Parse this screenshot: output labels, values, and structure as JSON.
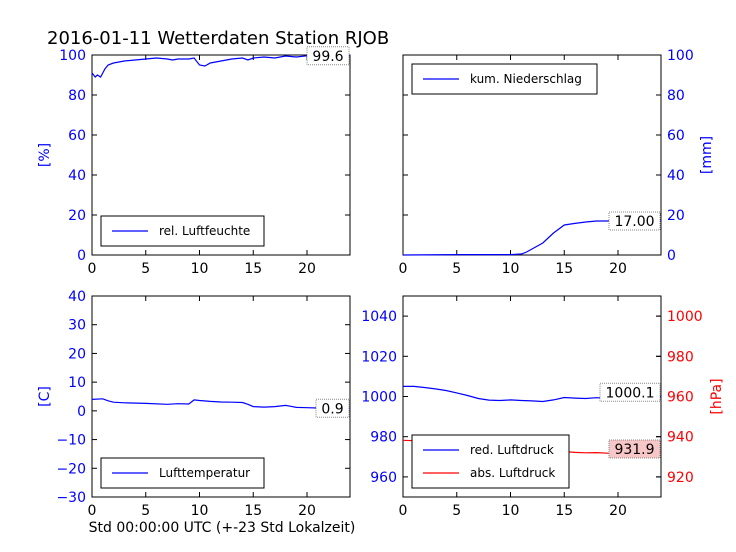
{
  "title": "2016-01-11 Wetterdaten Station RJOB",
  "xlabel": "Std 00:00:00 UTC (+-23 Std Lokalzeit)",
  "colors": {
    "blue": "#0000ff",
    "red": "#ff0000",
    "label_bg": "#f7c6c6"
  },
  "chart_data": [
    {
      "type": "line",
      "panel": "top-left",
      "ylabel": "[%]",
      "xlim": [
        0,
        24
      ],
      "ylim": [
        0,
        100
      ],
      "xticks": [
        0,
        5,
        10,
        15,
        20
      ],
      "yticks": [
        0,
        20,
        40,
        60,
        80,
        100
      ],
      "legend_loc": "lower-left",
      "value_label": "99.6",
      "series": [
        {
          "name": "rel. Luftfeuchte",
          "color": "#0000ff",
          "x": [
            0,
            0.3,
            0.5,
            0.8,
            1.0,
            1.2,
            1.5,
            2,
            3,
            4,
            5,
            6,
            7,
            7.5,
            8,
            9,
            9.5,
            10,
            10.5,
            11,
            12,
            13,
            14,
            14.5,
            15,
            16,
            17,
            18,
            19,
            20,
            21,
            22,
            23,
            24
          ],
          "y": [
            91,
            89,
            90,
            89,
            91,
            93,
            95,
            96,
            97,
            97.5,
            98,
            98.5,
            98,
            97.5,
            98,
            98,
            98.5,
            95,
            94.5,
            96,
            97,
            98,
            98.5,
            97.5,
            98.5,
            99,
            98.5,
            99.5,
            99,
            99.6,
            99.3,
            99.6,
            99.6,
            99.6
          ]
        }
      ]
    },
    {
      "type": "line",
      "panel": "top-right",
      "ylabel": "[mm]",
      "yaxis_side": "right",
      "xlim": [
        0,
        24
      ],
      "ylim": [
        0,
        100
      ],
      "xticks": [
        0,
        5,
        10,
        15,
        20
      ],
      "yticks": [
        0,
        20,
        40,
        60,
        80,
        100
      ],
      "legend_loc": "upper-left",
      "value_label": "17.00",
      "series": [
        {
          "name": "kum. Niederschlag",
          "color": "#0000ff",
          "x": [
            0,
            5,
            10,
            11,
            11.5,
            12,
            13,
            14,
            15,
            16,
            17,
            18,
            20,
            22,
            24
          ],
          "y": [
            0,
            0.2,
            0.2,
            0.5,
            1.5,
            3,
            6,
            11,
            15,
            15.8,
            16.5,
            17,
            17,
            17,
            17
          ]
        }
      ]
    },
    {
      "type": "line",
      "panel": "bottom-left",
      "ylabel": "[C]",
      "xlim": [
        0,
        24
      ],
      "ylim": [
        -30,
        40
      ],
      "xticks": [
        0,
        5,
        10,
        15,
        20
      ],
      "yticks": [
        -30,
        -20,
        -10,
        0,
        10,
        20,
        30,
        40
      ],
      "legend_loc": "lower-left",
      "value_label": "0.9",
      "series": [
        {
          "name": "Lufttemperatur",
          "color": "#0000ff",
          "x": [
            0,
            1,
            1.5,
            2,
            3,
            5,
            7,
            8,
            9,
            9.5,
            10,
            11,
            12,
            13,
            14,
            14.5,
            15,
            16,
            17,
            18,
            18.5,
            19,
            20,
            21,
            22,
            23,
            24
          ],
          "y": [
            4,
            4.2,
            3.5,
            3,
            2.8,
            2.6,
            2.3,
            2.5,
            2.4,
            3.8,
            3.6,
            3.3,
            3.1,
            3.0,
            2.9,
            2.3,
            1.5,
            1.3,
            1.5,
            1.9,
            1.6,
            1.2,
            1.1,
            1.0,
            0.9,
            0.9,
            0.9
          ]
        }
      ]
    },
    {
      "type": "line",
      "panel": "bottom-right",
      "xlim": [
        0,
        24
      ],
      "ylim": [
        950,
        1050
      ],
      "ylim_right": [
        910,
        1010
      ],
      "ylabel_right": "[hPa]",
      "xticks": [
        0,
        5,
        10,
        15,
        20
      ],
      "yticks": [
        960,
        980,
        1000,
        1020,
        1040
      ],
      "yticks_right": [
        920,
        940,
        960,
        980,
        1000
      ],
      "legend_loc": "lower-left",
      "value_labels": [
        "1000.1",
        "931.9"
      ],
      "series": [
        {
          "name": "red. Luftdruck",
          "color": "#0000ff",
          "axis": "left",
          "x": [
            0,
            1,
            2,
            3,
            4,
            5,
            6,
            7,
            8,
            9,
            10,
            11,
            12,
            13,
            14,
            15,
            16,
            17,
            18,
            19,
            20,
            21,
            22,
            23,
            24
          ],
          "y": [
            1005,
            1005,
            1004.5,
            1003.8,
            1003,
            1001.8,
            1000.5,
            999,
            998.2,
            998,
            998.3,
            998,
            997.8,
            997.5,
            998.3,
            999.5,
            999.2,
            999,
            999.4,
            999,
            998.5,
            999.5,
            999.8,
            1000,
            1000.1
          ]
        },
        {
          "name": "abs. Luftdruck",
          "color": "#ff0000",
          "axis": "right",
          "x": [
            0,
            1,
            2,
            3,
            4,
            5,
            6,
            7,
            8,
            9,
            10,
            11,
            12,
            13,
            14,
            15,
            16,
            17,
            18,
            19,
            20,
            21,
            22,
            23,
            24
          ],
          "y": [
            938.2,
            938,
            937.2,
            936.6,
            935.8,
            934.7,
            933.8,
            933.2,
            932.5,
            932.2,
            932.6,
            932.1,
            931.9,
            932,
            932.2,
            932.6,
            932.2,
            932,
            932.1,
            931.8,
            931.2,
            931.7,
            932.3,
            932,
            931.9
          ]
        }
      ]
    }
  ]
}
